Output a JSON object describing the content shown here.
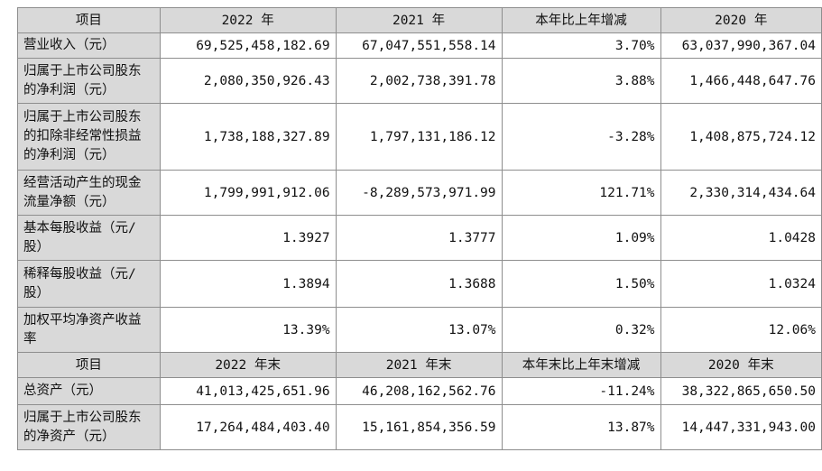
{
  "header1": [
    "项目",
    "2022 年",
    "2021 年",
    "本年比上年增减",
    "2020 年"
  ],
  "rows1": [
    {
      "label": "营业收入（元）",
      "values": [
        "69,525,458,182.69",
        "67,047,551,558.14",
        "3.70%",
        "63,037,990,367.04"
      ]
    },
    {
      "label": "归属于上市公司股东的净利润（元）",
      "values": [
        "2,080,350,926.43",
        "2,002,738,391.78",
        "3.88%",
        "1,466,448,647.76"
      ]
    },
    {
      "label": "归属于上市公司股东的扣除非经常性损益的净利润（元）",
      "values": [
        "1,738,188,327.89",
        "1,797,131,186.12",
        "-3.28%",
        "1,408,875,724.12"
      ]
    },
    {
      "label": "经营活动产生的现金流量净额（元）",
      "values": [
        "1,799,991,912.06",
        "-8,289,573,971.99",
        "121.71%",
        "2,330,314,434.64"
      ]
    },
    {
      "label": "基本每股收益（元/股）",
      "values": [
        "1.3927",
        "1.3777",
        "1.09%",
        "1.0428"
      ]
    },
    {
      "label": "稀释每股收益（元/股）",
      "values": [
        "1.3894",
        "1.3688",
        "1.50%",
        "1.0324"
      ]
    },
    {
      "label": "加权平均净资产收益率",
      "values": [
        "13.39%",
        "13.07%",
        "0.32%",
        "12.06%"
      ]
    }
  ],
  "header2": [
    "项目",
    "2022 年末",
    "2021 年末",
    "本年末比上年末增减",
    "2020 年末"
  ],
  "rows2": [
    {
      "label": "总资产（元）",
      "values": [
        "41,013,425,651.96",
        "46,208,162,562.76",
        "-11.24%",
        "38,322,865,650.50"
      ]
    },
    {
      "label": "归属于上市公司股东的净资产（元）",
      "values": [
        "17,264,484,403.40",
        "15,161,854,356.59",
        "13.87%",
        "14,447,331,943.00"
      ]
    }
  ]
}
